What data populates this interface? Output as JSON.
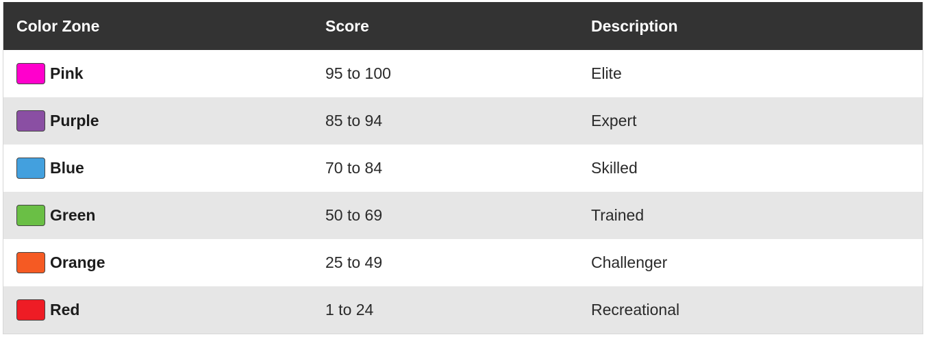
{
  "table": {
    "headers": {
      "zone": "Color Zone",
      "score": "Score",
      "description": "Description"
    },
    "rows": [
      {
        "zone": "Pink",
        "color": "#ff00cc",
        "score": "95 to 100",
        "description": "Elite"
      },
      {
        "zone": "Purple",
        "color": "#8a4fa3",
        "score": "85 to 94",
        "description": "Expert"
      },
      {
        "zone": "Blue",
        "color": "#43a0de",
        "score": "70 to 84",
        "description": "Skilled"
      },
      {
        "zone": "Green",
        "color": "#6abf45",
        "score": "50 to 69",
        "description": "Trained"
      },
      {
        "zone": "Orange",
        "color": "#f55a23",
        "score": "25 to 49",
        "description": "Challenger"
      },
      {
        "zone": "Red",
        "color": "#ee1c25",
        "score": "1 to 24",
        "description": "Recreational"
      }
    ]
  }
}
